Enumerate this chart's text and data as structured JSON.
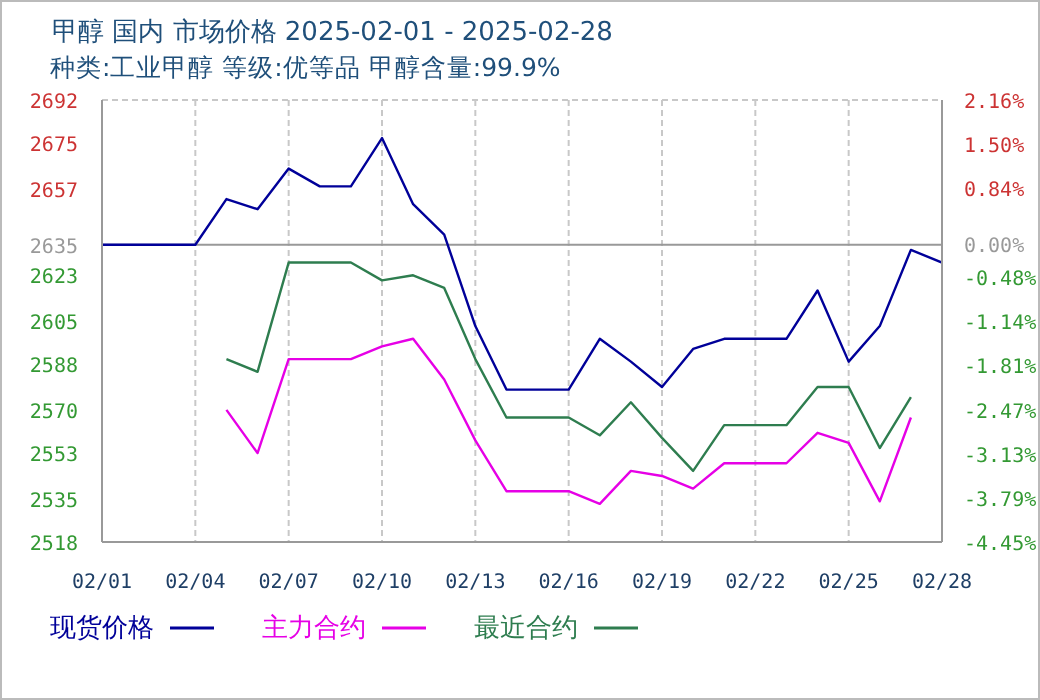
{
  "chart_data": {
    "type": "line",
    "title": "甲醇 国内 市场价格 2025-02-01 - 2025-02-28",
    "subtitle": "种类:工业甲醇 等级:优等品 甲醇含量:99.9%",
    "x": [
      "--02-01",
      "--02-02",
      "--02-03",
      "--02-04",
      "--02-05",
      "--02-06",
      "--02-07",
      "--02-08",
      "--02-09",
      "--02-10",
      "--02-11",
      "--02-12",
      "--02-13",
      "--02-14",
      "--02-15",
      "--02-16",
      "--02-17",
      "--02-18",
      "--02-19",
      "--02-20",
      "--02-21",
      "--02-22",
      "--02-23",
      "--02-24",
      "--02-25",
      "--02-26",
      "--02-27",
      "--02-28"
    ],
    "series": [
      {
        "name": "现货价格",
        "color": "#000099",
        "values": [
          2635,
          2635,
          2635,
          2635,
          2653,
          2649,
          2665,
          2658,
          2658,
          2677,
          2651,
          2639,
          2603,
          2578,
          2578,
          2578,
          2598,
          2589,
          2579,
          2594,
          2598,
          2598,
          2598,
          2617,
          2589,
          2603,
          2633,
          2628
        ]
      },
      {
        "name": "主力合约",
        "color": "#e600e6",
        "values": [
          null,
          null,
          null,
          null,
          2570,
          2553,
          2590,
          2590,
          2590,
          2595,
          2598,
          2582,
          2558,
          2538,
          2538,
          2538,
          2533,
          2546,
          2544,
          2539,
          2549,
          2549,
          2549,
          2561,
          2557,
          2534,
          2567,
          null
        ]
      },
      {
        "name": "最近合约",
        "color": "#2e7d4f",
        "values": [
          null,
          null,
          null,
          null,
          2590,
          2585,
          2628,
          2628,
          2628,
          2621,
          2623,
          2618,
          2590,
          2567,
          2567,
          2567,
          2560,
          2573,
          2559,
          2546,
          2564,
          2564,
          2564,
          2579,
          2579,
          2555,
          2575,
          null
        ]
      }
    ],
    "xlim": [
      "--02-01",
      "--02-28"
    ],
    "xticks": [
      {
        "value": "--02-01",
        "label": "02/01"
      },
      {
        "value": "--02-04",
        "label": "02/04"
      },
      {
        "value": "--02-07",
        "label": "02/07"
      },
      {
        "value": "--02-10",
        "label": "02/10"
      },
      {
        "value": "--02-13",
        "label": "02/13"
      },
      {
        "value": "--02-16",
        "label": "02/16"
      },
      {
        "value": "--02-19",
        "label": "02/19"
      },
      {
        "value": "--02-22",
        "label": "02/22"
      },
      {
        "value": "--02-25",
        "label": "02/25"
      },
      {
        "value": "--02-28",
        "label": "02/28"
      }
    ],
    "ylim": [
      2518,
      2692
    ],
    "yticks": [
      2518,
      2535,
      2553,
      2570,
      2588,
      2605,
      2623,
      2635,
      2657,
      2675,
      2692
    ],
    "y2lim": [
      -4.45,
      2.16
    ],
    "y2ticks": [
      {
        "value": -4.45,
        "label": "-4.45%"
      },
      {
        "value": -3.79,
        "label": "-3.79%"
      },
      {
        "value": -3.13,
        "label": "-3.13%"
      },
      {
        "value": -2.47,
        "label": "-2.47%"
      },
      {
        "value": -1.81,
        "label": "-1.81%"
      },
      {
        "value": -1.14,
        "label": "-1.14%"
      },
      {
        "value": -0.48,
        "label": "-0.48%"
      },
      {
        "value": 0,
        "label": "0.00%"
      },
      {
        "value": 0.84,
        "label": "0.84%"
      },
      {
        "value": 1.5,
        "label": "1.50%"
      },
      {
        "value": 2.16,
        "label": "2.16%"
      }
    ],
    "ref_lines": [
      {
        "axis": "y",
        "value": 2635,
        "color": "#999999",
        "line_style": "solid"
      }
    ],
    "grid": true,
    "legend": "bottom",
    "marker": "none",
    "line_style": "solid"
  }
}
